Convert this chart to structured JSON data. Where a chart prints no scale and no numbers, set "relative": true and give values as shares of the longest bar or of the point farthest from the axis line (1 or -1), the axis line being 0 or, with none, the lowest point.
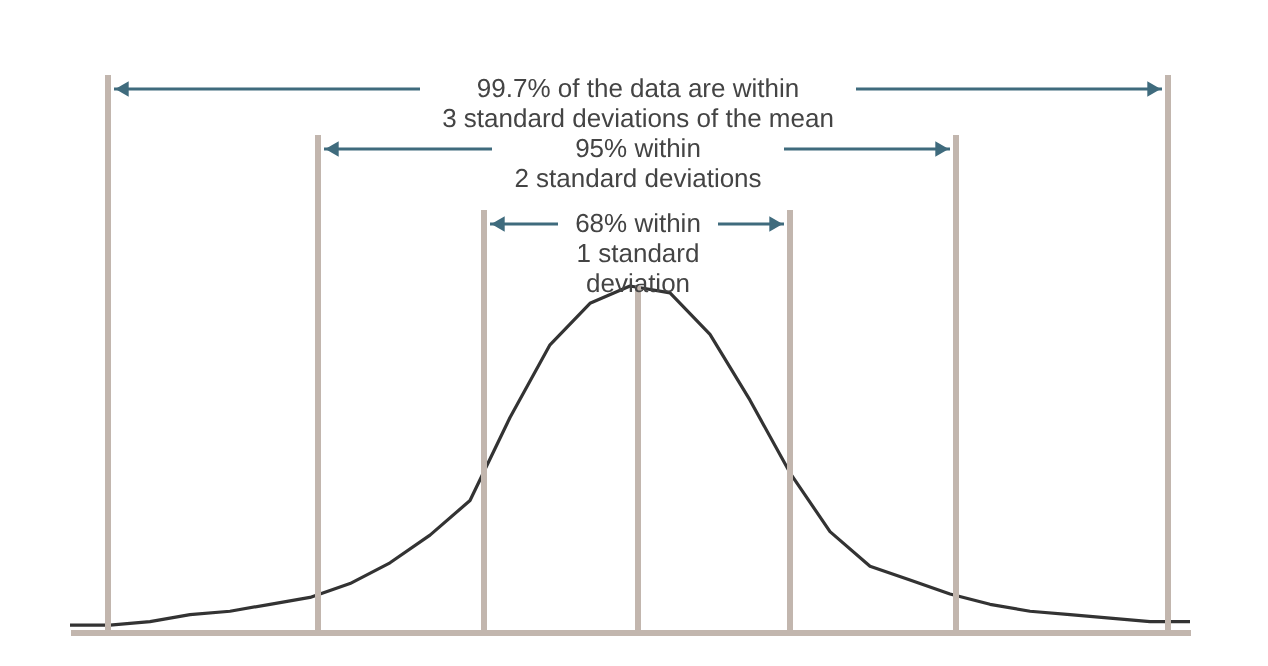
{
  "chart_data": {
    "type": "line",
    "relative": true,
    "categories": [
      null,
      null,
      null,
      null,
      null,
      null,
      null,
      null,
      null,
      null,
      null,
      null,
      null,
      null,
      null,
      null,
      null,
      null,
      null,
      null,
      null,
      null,
      null,
      null,
      null,
      null,
      null,
      null,
      null
    ],
    "series": [
      {
        "color": "#333333",
        "values": [
          0.02,
          0.02,
          0.03,
          0.05,
          0.06,
          0.08,
          0.1,
          0.14,
          0.2,
          0.28,
          0.38,
          0.62,
          0.83,
          0.95,
          1,
          0.98,
          0.86,
          0.67,
          0.46,
          0.29,
          0.19,
          0.15,
          0.11,
          0.08,
          0.06,
          0.05,
          0.04,
          0.03,
          0.03
        ]
      }
    ],
    "annotations": [
      "99.7% of the data are within\n3 standard deviations of the mean",
      "95% within\n2 standard deviations",
      "68% within\n1 standard\ndeviation"
    ]
  }
}
